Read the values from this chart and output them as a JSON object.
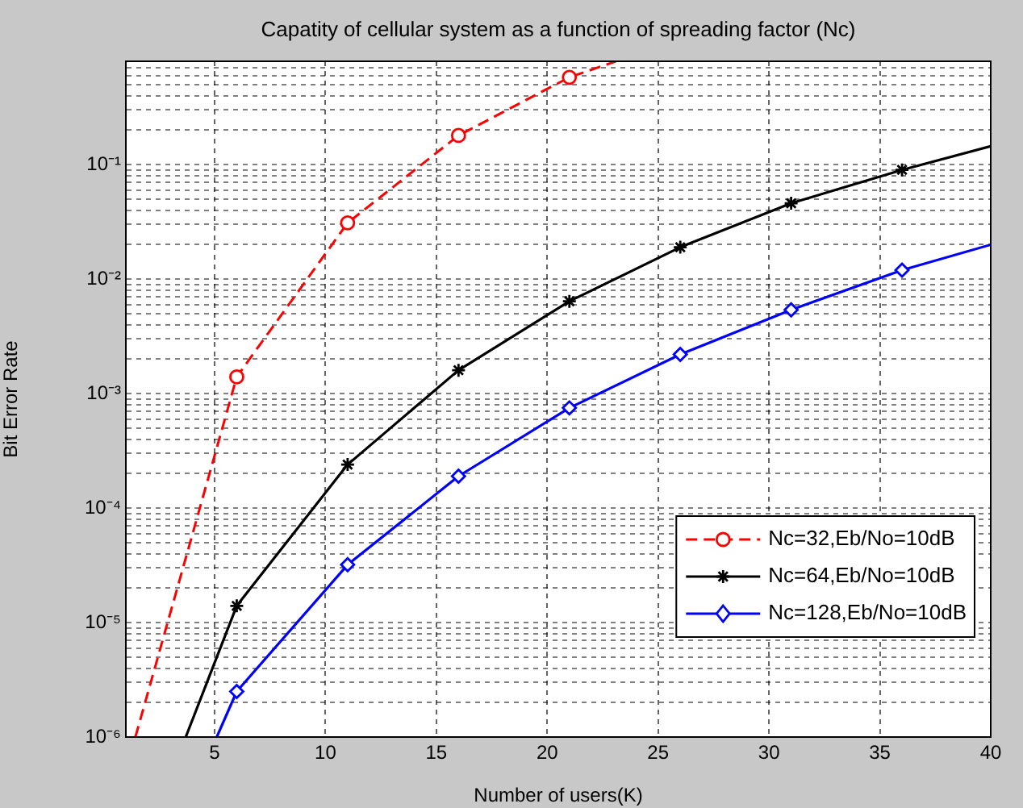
{
  "chart_data": {
    "type": "line",
    "title": "Capatity of cellular system as a function of spreading factor (Nc)",
    "xlabel": "Number of users(K)",
    "ylabel": "Bit Error Rate",
    "log": "y",
    "grid": true,
    "legend": "bottom right",
    "xlim": [
      1,
      40
    ],
    "xticks": [
      5,
      10,
      15,
      20,
      25,
      30,
      35,
      40
    ],
    "ylim": [
      1e-06,
      0.8
    ],
    "yticks": [
      {
        "value": 1e-06,
        "label": "10⁻⁶"
      },
      {
        "value": 2e-06,
        "label": null
      },
      {
        "value": 3e-06,
        "label": null
      },
      {
        "value": 4e-06,
        "label": null
      },
      {
        "value": 5e-06,
        "label": null
      },
      {
        "value": 6e-06,
        "label": null
      },
      {
        "value": 7e-06,
        "label": null
      },
      {
        "value": 8e-06,
        "label": null
      },
      {
        "value": 9e-06,
        "label": null
      },
      {
        "value": 1e-05,
        "label": "10⁻⁵"
      },
      {
        "value": 2e-05,
        "label": null
      },
      {
        "value": 3e-05,
        "label": null
      },
      {
        "value": 4e-05,
        "label": null
      },
      {
        "value": 5e-05,
        "label": null
      },
      {
        "value": 6e-05,
        "label": null
      },
      {
        "value": 7e-05,
        "label": null
      },
      {
        "value": 8e-05,
        "label": null
      },
      {
        "value": 9e-05,
        "label": null
      },
      {
        "value": 0.0001,
        "label": "10⁻⁴"
      },
      {
        "value": 0.0002,
        "label": null
      },
      {
        "value": 0.0003,
        "label": null
      },
      {
        "value": 0.0004,
        "label": null
      },
      {
        "value": 0.0005,
        "label": null
      },
      {
        "value": 0.0006,
        "label": null
      },
      {
        "value": 0.0007,
        "label": null
      },
      {
        "value": 0.0008,
        "label": null
      },
      {
        "value": 0.0009,
        "label": null
      },
      {
        "value": 0.001,
        "label": "10⁻³"
      },
      {
        "value": 0.002,
        "label": null
      },
      {
        "value": 0.003,
        "label": null
      },
      {
        "value": 0.004,
        "label": null
      },
      {
        "value": 0.005,
        "label": null
      },
      {
        "value": 0.006,
        "label": null
      },
      {
        "value": 0.007,
        "label": null
      },
      {
        "value": 0.008,
        "label": null
      },
      {
        "value": 0.009,
        "label": null
      },
      {
        "value": 0.01,
        "label": "10⁻²"
      },
      {
        "value": 0.02,
        "label": null
      },
      {
        "value": 0.03,
        "label": null
      },
      {
        "value": 0.04,
        "label": null
      },
      {
        "value": 0.05,
        "label": null
      },
      {
        "value": 0.06,
        "label": null
      },
      {
        "value": 0.07,
        "label": null
      },
      {
        "value": 0.08,
        "label": null
      },
      {
        "value": 0.09,
        "label": null
      },
      {
        "value": 0.1,
        "label": "10⁻¹"
      },
      {
        "value": 0.2,
        "label": null
      },
      {
        "value": 0.3,
        "label": null
      },
      {
        "value": 0.4,
        "label": null
      },
      {
        "value": 0.5,
        "label": null
      },
      {
        "value": 0.6,
        "label": null
      },
      {
        "value": 0.7,
        "label": null
      }
    ],
    "series": [
      {
        "name": "Nc=32,Eb/No=10dB",
        "color": "#ff0000",
        "marker": "circle",
        "line_style": "dashed",
        "x": [
          1.43,
          6,
          11,
          16,
          21,
          23.1
        ],
        "values": [
          1e-06,
          0.0014,
          0.031,
          0.18,
          0.58,
          0.8
        ]
      },
      {
        "name": "Nc=64,Eb/No=10dB",
        "color": "#000000",
        "marker": "cross",
        "line_style": "solid",
        "x": [
          3.7,
          6,
          11,
          16,
          21,
          26,
          31,
          36,
          40
        ],
        "values": [
          1e-06,
          1.4e-05,
          0.00024,
          0.0016,
          0.0064,
          0.019,
          0.046,
          0.09,
          0.145
        ]
      },
      {
        "name": "Nc=128,Eb/No=10dB",
        "color": "#0000ff",
        "marker": "diamond",
        "line_style": "solid",
        "x": [
          5.1,
          6,
          11,
          16,
          21,
          26,
          31,
          36,
          40
        ],
        "values": [
          1e-06,
          2.5e-06,
          3.2e-05,
          0.00019,
          0.00075,
          0.0022,
          0.0054,
          0.012,
          0.02
        ]
      }
    ]
  }
}
